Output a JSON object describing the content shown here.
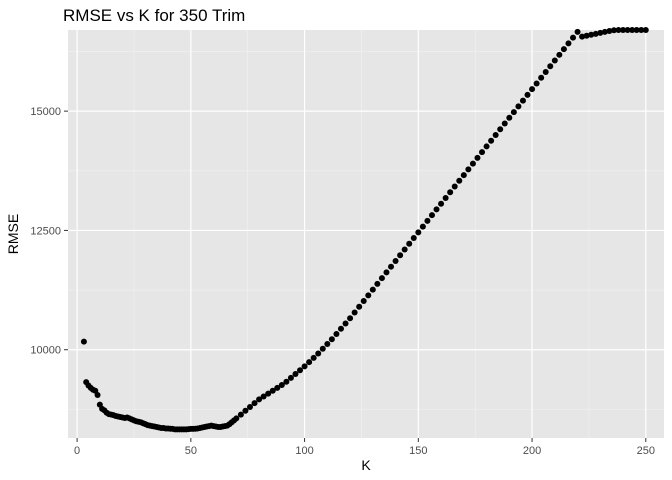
{
  "chart_data": {
    "type": "scatter",
    "title": "RMSE vs K for 350 Trim",
    "xlabel": "K",
    "ylabel": "RMSE",
    "xlim": [
      -4,
      258
    ],
    "ylim": [
      8150,
      16700
    ],
    "x_ticks": [
      0,
      50,
      100,
      150,
      200,
      250
    ],
    "y_ticks": [
      10000,
      12500,
      15000
    ],
    "grid": true,
    "panel_background": "#e6e6e6",
    "point_color": "#000000",
    "x": [
      3,
      4,
      5,
      6,
      7,
      8,
      9,
      10,
      11,
      12,
      13,
      14,
      15,
      16,
      17,
      18,
      19,
      20,
      21,
      22,
      23,
      24,
      25,
      26,
      27,
      28,
      29,
      30,
      31,
      32,
      33,
      34,
      35,
      36,
      37,
      38,
      39,
      40,
      41,
      42,
      43,
      44,
      45,
      46,
      47,
      48,
      49,
      50,
      51,
      52,
      53,
      54,
      55,
      56,
      57,
      58,
      59,
      60,
      61,
      62,
      63,
      64,
      65,
      66,
      67,
      68,
      69,
      70,
      72,
      74,
      76,
      78,
      80,
      82,
      84,
      86,
      88,
      90,
      92,
      94,
      96,
      98,
      100,
      102,
      104,
      106,
      108,
      110,
      112,
      114,
      116,
      118,
      120,
      122,
      124,
      126,
      128,
      130,
      132,
      134,
      136,
      138,
      140,
      142,
      144,
      146,
      148,
      150,
      152,
      154,
      156,
      158,
      160,
      162,
      164,
      166,
      168,
      170,
      172,
      174,
      176,
      178,
      180,
      182,
      184,
      186,
      188,
      190,
      192,
      194,
      196,
      198,
      200,
      202,
      204,
      206,
      208,
      210,
      212,
      214,
      216,
      218,
      220,
      222,
      224,
      226,
      228,
      230,
      232,
      234,
      236,
      238,
      240,
      242,
      244,
      246,
      248,
      250
    ],
    "y": [
      10170,
      9320,
      9250,
      9200,
      9160,
      9140,
      9050,
      8850,
      8760,
      8730,
      8680,
      8650,
      8640,
      8630,
      8610,
      8600,
      8590,
      8580,
      8570,
      8580,
      8560,
      8540,
      8520,
      8500,
      8490,
      8480,
      8460,
      8440,
      8420,
      8410,
      8400,
      8390,
      8380,
      8370,
      8360,
      8360,
      8350,
      8350,
      8345,
      8340,
      8330,
      8330,
      8330,
      8330,
      8330,
      8330,
      8335,
      8340,
      8340,
      8345,
      8350,
      8360,
      8370,
      8380,
      8390,
      8400,
      8410,
      8400,
      8390,
      8380,
      8380,
      8390,
      8400,
      8410,
      8440,
      8480,
      8520,
      8560,
      8640,
      8720,
      8800,
      8880,
      8960,
      9020,
      9080,
      9140,
      9200,
      9260,
      9330,
      9410,
      9490,
      9570,
      9650,
      9740,
      9830,
      9920,
      10020,
      10120,
      10220,
      10330,
      10440,
      10550,
      10660,
      10780,
      10900,
      11020,
      11140,
      11260,
      11380,
      11500,
      11620,
      11740,
      11860,
      11980,
      12100,
      12220,
      12340,
      12460,
      12580,
      12700,
      12820,
      12940,
      13060,
      13180,
      13300,
      13420,
      13540,
      13660,
      13780,
      13900,
      14020,
      14140,
      14260,
      14380,
      14500,
      14620,
      14740,
      14860,
      14980,
      15100,
      15220,
      15340,
      15460,
      15580,
      15700,
      15820,
      15940,
      16060,
      16180,
      16300,
      16420,
      16540,
      16660,
      16560,
      16580,
      16600,
      16620,
      16640,
      16660,
      16680,
      16695,
      16700,
      16700,
      16700,
      16700,
      16700,
      16700,
      16700
    ]
  }
}
